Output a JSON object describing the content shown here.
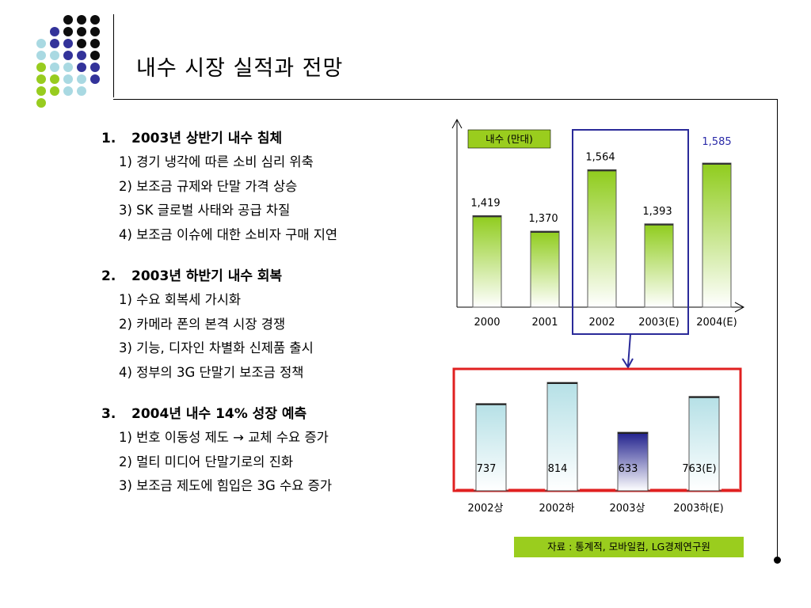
{
  "title": "내수 시장 실적과 전망",
  "colors": {
    "dot_black": "#0d0d0d",
    "dot_navy": "#33339a",
    "dot_lightblue": "#a9d9e2",
    "dot_green": "#98cc1f",
    "bar_green": "#8fcc1c",
    "bar_lightblue": "#b5e0e6",
    "bar_navy": "#1f1f8c",
    "box_navy": "#2a2a99",
    "box_red": "#e02020",
    "forecast_text": "#2a2aa8",
    "legend_bg": "#9acd1e"
  },
  "outline": [
    {
      "num": "1.",
      "heading": "2003년 상반기 내수 침체",
      "items": [
        "1) 경기 냉각에 따른 소비 심리 위축",
        "2) 보조금 규제와 단말 가격 상승",
        "3) SK 글로벌 사태와 공급 차질",
        "4) 보조금 이슈에 대한 소비자 구매 지연"
      ]
    },
    {
      "num": "2.",
      "heading": "2003년 하반기 내수 회복",
      "items": [
        "1) 수요 회복세 가시화",
        "2) 카메라 폰의 본격 시장 경쟁",
        "3) 기능, 디자인 차별화 신제품 출시",
        "4) 정부의 3G 단말기 보조금 정책"
      ]
    },
    {
      "num": "3.",
      "heading": "2004년 내수 14% 성장 예측",
      "items": [
        "1) 번호 이동성 제도 → 교체 수요 증가",
        "2) 멀티 미디어 단말기로의 진화",
        "3) 보조금 제도에 힘입은 3G 수요 증가"
      ]
    }
  ],
  "chart_data": [
    {
      "type": "bar",
      "legend": "내수 (만대)",
      "categories": [
        "2000",
        "2001",
        "2002",
        "2003(E)",
        "2004(E)"
      ],
      "values": [
        1419,
        1370,
        1564,
        1393,
        1585
      ],
      "labels": [
        "1,419",
        "1,370",
        "1,564",
        "1,393",
        "1,585"
      ],
      "highlight_categories": [
        "2002",
        "2003(E)"
      ],
      "forecast_label_category": "2004(E)"
    },
    {
      "type": "bar",
      "categories": [
        "2002상",
        "2002하",
        "2003상",
        "2003하(E)"
      ],
      "values": [
        737,
        814,
        633,
        763
      ],
      "labels": [
        "737",
        "814",
        "633",
        "763(E)"
      ],
      "emphasis_category": "2003상"
    }
  ],
  "source": "자료 : 통계적, 모바일컴, LG경제연구원"
}
